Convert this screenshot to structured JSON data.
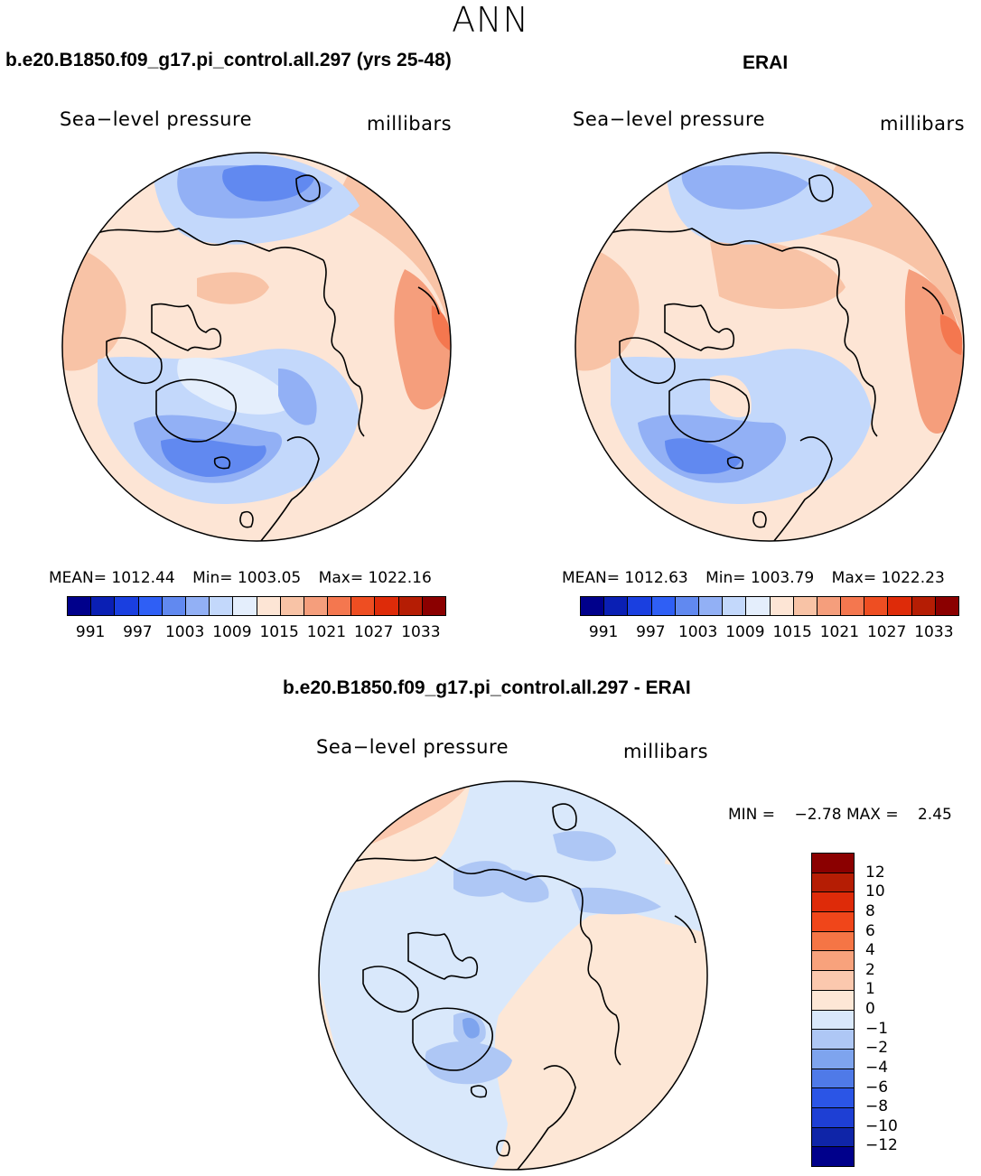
{
  "title": "ANN",
  "panels": [
    {
      "title": "b.e20.B1850.f09_g17.pi_control.all.297 (yrs 25-48)",
      "variable": "Sea−level pressure",
      "units": "millibars",
      "mean_label": "MEAN=",
      "mean": "1012.44",
      "min_label": "Min=",
      "min": "1003.05",
      "max_label": "Max=",
      "max": "1022.16"
    },
    {
      "title": "ERAI",
      "variable": "Sea−level pressure",
      "units": "millibars",
      "mean_label": "MEAN=",
      "mean": "1012.63",
      "min_label": "Min=",
      "min": "1003.79",
      "max_label": "Max=",
      "max": "1022.23"
    }
  ],
  "diff": {
    "title": "b.e20.B1850.f09_g17.pi_control.all.297 - ERAI",
    "variable": "Sea−level pressure",
    "units": "millibars",
    "min_label": "MIN =",
    "min": "−2.78",
    "max_label": "MAX =",
    "max": "2.45"
  },
  "colorbar": {
    "colors": [
      "#00008b",
      "#0a1fb4",
      "#1a3fe0",
      "#2f5ff5",
      "#6189f0",
      "#92b0f5",
      "#c3d8fb",
      "#e4eefc",
      "#fde5d5",
      "#f8c3a6",
      "#f59e7c",
      "#f4774f",
      "#ee4e22",
      "#de2b09",
      "#b51d04",
      "#8b0000"
    ],
    "ticks": [
      "991",
      "997",
      "1003",
      "1009",
      "1015",
      "1021",
      "1027",
      "1033"
    ]
  },
  "diff_colorbar": {
    "colors_top_to_bottom": [
      "#8b0000",
      "#b51d04",
      "#de2b09",
      "#f0461a",
      "#f57545",
      "#f8a27c",
      "#fbc8ae",
      "#fde7d6",
      "#d9e8fb",
      "#aec7f5",
      "#7ea4ee",
      "#4f7ae8",
      "#2b55e6",
      "#1e3fd4",
      "#0f25a8",
      "#00008b"
    ],
    "ticks": [
      "12",
      "10",
      "8",
      "6",
      "4",
      "2",
      "1",
      "0",
      "−1",
      "−2",
      "−4",
      "−6",
      "−8",
      "−10",
      "−12"
    ]
  }
}
